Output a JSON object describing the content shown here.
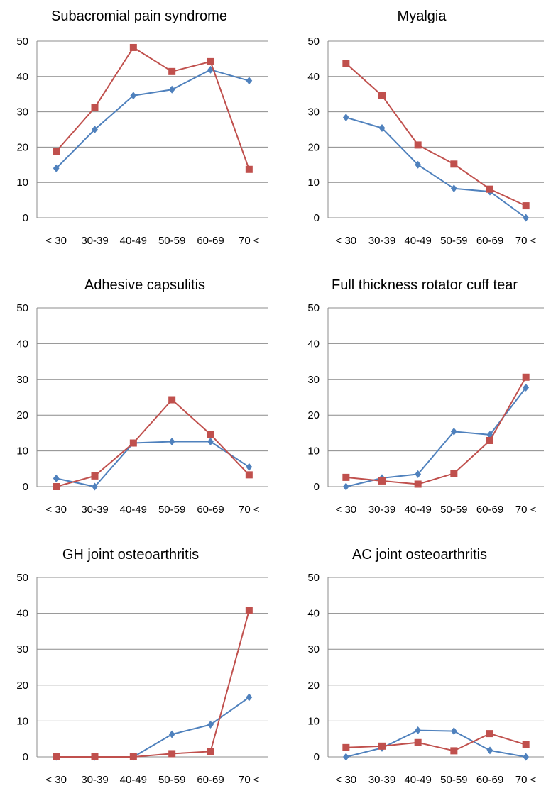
{
  "chart_data": [
    {
      "type": "line",
      "title": "Subacromial pain syndrome",
      "categories": [
        "< 30",
        "30-39",
        "40-49",
        "50-59",
        "60-69",
        "70 <"
      ],
      "ylim": [
        0,
        50
      ],
      "yticks": [
        0,
        10,
        20,
        30,
        40,
        50
      ],
      "grid": true,
      "series": [
        {
          "values": [
            14,
            25,
            34.6,
            36.3,
            41.9,
            38.8
          ],
          "color": "#4f81bd",
          "marker": "diamond"
        },
        {
          "values": [
            18.8,
            31.2,
            48.2,
            41.4,
            44.2,
            13.7
          ],
          "color": "#c0504d",
          "marker": "square"
        }
      ]
    },
    {
      "type": "line",
      "title": "Myalgia",
      "categories": [
        "< 30",
        "30-39",
        "40-49",
        "50-59",
        "60-69",
        "70 <"
      ],
      "ylim": [
        0,
        50
      ],
      "yticks": [
        0,
        10,
        20,
        30,
        40,
        50
      ],
      "grid": true,
      "series": [
        {
          "values": [
            28.4,
            25.4,
            15,
            8.3,
            7.4,
            0
          ],
          "color": "#4f81bd",
          "marker": "diamond"
        },
        {
          "values": [
            43.7,
            34.6,
            20.6,
            15.2,
            8.1,
            3.4
          ],
          "color": "#c0504d",
          "marker": "square"
        }
      ]
    },
    {
      "type": "line",
      "title": "Adhesive capsulitis",
      "categories": [
        "< 30",
        "30-39",
        "40-49",
        "50-59",
        "60-69",
        "70 <"
      ],
      "ylim": [
        0,
        50
      ],
      "yticks": [
        0,
        10,
        20,
        30,
        40,
        50
      ],
      "grid": true,
      "series": [
        {
          "values": [
            2.3,
            0,
            12.2,
            12.6,
            12.6,
            5.5
          ],
          "color": "#4f81bd",
          "marker": "diamond"
        },
        {
          "values": [
            0,
            3,
            12.2,
            24.3,
            14.6,
            3.3
          ],
          "color": "#c0504d",
          "marker": "square"
        }
      ]
    },
    {
      "type": "line",
      "title": "Full thickness rotator cuff tear",
      "categories": [
        "< 30",
        "30-39",
        "40-49",
        "50-59",
        "60-69",
        "70 <"
      ],
      "ylim": [
        0,
        50
      ],
      "yticks": [
        0,
        10,
        20,
        30,
        40,
        50
      ],
      "grid": true,
      "series": [
        {
          "values": [
            0,
            2.4,
            3.5,
            15.4,
            14.5,
            27.7
          ],
          "color": "#4f81bd",
          "marker": "diamond"
        },
        {
          "values": [
            2.6,
            1.6,
            0.7,
            3.7,
            12.9,
            30.6
          ],
          "color": "#c0504d",
          "marker": "square"
        }
      ]
    },
    {
      "type": "line",
      "title": "GH joint osteoarthritis",
      "categories": [
        "< 30",
        "30-39",
        "40-49",
        "50-59",
        "60-69",
        "70 <"
      ],
      "ylim": [
        0,
        50
      ],
      "yticks": [
        0,
        10,
        20,
        30,
        40,
        50
      ],
      "grid": true,
      "series": [
        {
          "values": [
            0,
            0,
            0,
            6.3,
            9,
            16.6
          ],
          "color": "#4f81bd",
          "marker": "diamond"
        },
        {
          "values": [
            0,
            0,
            0,
            0.9,
            1.5,
            40.8
          ],
          "color": "#c0504d",
          "marker": "square"
        }
      ]
    },
    {
      "type": "line",
      "title": "AC joint osteoarthritis",
      "categories": [
        "< 30",
        "30-39",
        "40-49",
        "50-59",
        "60-69",
        "70 <"
      ],
      "ylim": [
        0,
        50
      ],
      "yticks": [
        0,
        10,
        20,
        30,
        40,
        50
      ],
      "grid": true,
      "series": [
        {
          "values": [
            0,
            2.5,
            7.4,
            7.2,
            1.8,
            0
          ],
          "color": "#4f81bd",
          "marker": "diamond"
        },
        {
          "values": [
            2.6,
            3,
            4,
            1.7,
            6.5,
            3.4
          ],
          "color": "#c0504d",
          "marker": "square"
        }
      ]
    }
  ]
}
